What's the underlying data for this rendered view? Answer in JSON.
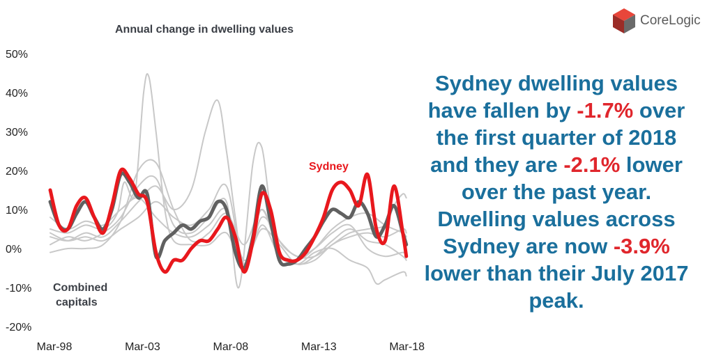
{
  "logo": {
    "name": "CoreLogic"
  },
  "summary": {
    "p1": "Sydney dwelling values have fallen by ",
    "v1": "-1.7%",
    "p2": " over the first quarter of 2018 and they are ",
    "v2": "-2.1%",
    "p3": " lower over the past year. Dwelling values across Sydney are now ",
    "v3": "-3.9%",
    "p4": " lower than their July 2017 peak."
  },
  "colors": {
    "sydney": "#e8181d",
    "combined": "#606060",
    "other": "#c8c8c8",
    "accent_text": "#1a6f9c"
  },
  "chart_data": {
    "type": "line",
    "title": "Annual change in dwelling values",
    "xlabel": "",
    "ylabel": "",
    "x_ticks": [
      "Mar-98",
      "Mar-03",
      "Mar-08",
      "Mar-13",
      "Mar-18"
    ],
    "y_ticks": [
      "50%",
      "40%",
      "30%",
      "20%",
      "10%",
      "0%",
      "-10%",
      "-20%"
    ],
    "ylim": [
      -20,
      50
    ],
    "xlim": [
      1998.0,
      2018.25
    ],
    "grid": false,
    "annotations": [
      {
        "text": "Sydney",
        "series": "Sydney"
      },
      {
        "text": "Combined\ncapitals",
        "series": "Combined capitals"
      }
    ],
    "series": [
      {
        "name": "Sydney",
        "x": [
          1998.0,
          1998.5,
          1999.0,
          1999.5,
          2000.0,
          2000.5,
          2001.0,
          2001.5,
          2002.0,
          2002.5,
          2003.0,
          2003.5,
          2004.0,
          2004.5,
          2005.0,
          2005.5,
          2006.0,
          2006.5,
          2007.0,
          2007.5,
          2008.0,
          2008.5,
          2009.0,
          2009.5,
          2010.0,
          2010.5,
          2011.0,
          2011.5,
          2012.0,
          2012.5,
          2013.0,
          2013.5,
          2014.0,
          2014.5,
          2015.0,
          2015.5,
          2016.0,
          2016.5,
          2017.0,
          2017.5,
          2018.0,
          2018.2
        ],
        "values": [
          15,
          6,
          5,
          11,
          13,
          8,
          4,
          11,
          20,
          18,
          14,
          12,
          -1,
          -6,
          -3,
          -3,
          0,
          2,
          2,
          5,
          8,
          3,
          -6,
          2,
          14,
          10,
          -1,
          -3,
          -3,
          -1,
          3,
          8,
          15,
          17,
          15,
          11,
          19,
          5,
          2,
          16,
          4,
          -2
        ]
      },
      {
        "name": "Combined capitals",
        "x": [
          1998.0,
          1998.5,
          1999.0,
          1999.5,
          2000.0,
          2000.5,
          2001.0,
          2001.5,
          2002.0,
          2002.5,
          2003.0,
          2003.5,
          2004.0,
          2004.5,
          2005.0,
          2005.5,
          2006.0,
          2006.5,
          2007.0,
          2007.5,
          2008.0,
          2008.5,
          2009.0,
          2009.5,
          2010.0,
          2010.5,
          2011.0,
          2011.5,
          2012.0,
          2012.5,
          2013.0,
          2013.5,
          2014.0,
          2014.5,
          2015.0,
          2015.5,
          2016.0,
          2016.5,
          2017.0,
          2017.5,
          2018.0,
          2018.2
        ],
        "values": [
          12,
          6,
          5,
          9,
          12,
          8,
          5,
          10,
          19,
          17,
          13,
          14,
          -2,
          2,
          4,
          6,
          5,
          7,
          8,
          12,
          10,
          -1,
          -5,
          3,
          16,
          7,
          -3,
          -4,
          -3,
          0,
          3,
          7,
          10,
          9,
          8,
          12,
          9,
          3,
          6,
          11,
          4,
          1
        ]
      },
      {
        "name": "",
        "x": [
          1998.0,
          1999.0,
          2000.0,
          2001.0,
          2001.8,
          2002.2,
          2002.8,
          2003.3,
          2003.6,
          2004.0,
          2004.5,
          2005.0,
          2006.0,
          2007.0,
          2008.0,
          2009.0,
          2010.0,
          2011.0,
          2012.0,
          2013.0,
          2014.0,
          2015.0,
          2016.0,
          2017.0,
          2018.0,
          2018.2
        ],
        "values": [
          5,
          4,
          6,
          5,
          9,
          17,
          14,
          40,
          44,
          30,
          10,
          2,
          1,
          1,
          4,
          -4,
          10,
          -1,
          -3,
          0,
          5,
          8,
          9,
          6,
          4,
          3
        ]
      },
      {
        "name": "",
        "x": [
          1998.0,
          1999.0,
          2000.0,
          2001.0,
          2002.0,
          2003.0,
          2004.0,
          2005.0,
          2006.0,
          2006.8,
          2007.5,
          2008.0,
          2008.5,
          2009.0,
          2010.0,
          2011.0,
          2012.0,
          2013.0,
          2014.0,
          2015.0,
          2016.0,
          2017.0,
          2018.0,
          2018.2
        ],
        "values": [
          3,
          2,
          4,
          3,
          7,
          12,
          16,
          10,
          15,
          30,
          38,
          25,
          8,
          -5,
          6,
          -2,
          -4,
          -3,
          1,
          3,
          4,
          3,
          5,
          4
        ]
      },
      {
        "name": "",
        "x": [
          1998.0,
          1999.0,
          2000.0,
          2001.0,
          2002.0,
          2003.0,
          2004.0,
          2005.0,
          2006.0,
          2007.0,
          2008.0,
          2008.7,
          2009.5,
          2010.0,
          2010.5,
          2011.0,
          2012.0,
          2013.0,
          2014.0,
          2015.0,
          2016.0,
          2017.0,
          2017.5,
          2018.0,
          2018.2
        ],
        "values": [
          1,
          3,
          2,
          4,
          8,
          16,
          18,
          6,
          4,
          8,
          12,
          -10,
          22,
          26,
          10,
          2,
          -2,
          -2,
          1,
          4,
          5,
          6,
          11,
          14,
          13
        ]
      },
      {
        "name": "",
        "x": [
          1998.0,
          1999.0,
          2000.0,
          2001.0,
          2002.0,
          2003.0,
          2004.0,
          2005.0,
          2006.0,
          2007.0,
          2008.0,
          2009.0,
          2010.0,
          2011.0,
          2012.0,
          2013.0,
          2014.0,
          2015.0,
          2016.0,
          2016.5,
          2017.0,
          2018.0,
          2018.2
        ],
        "values": [
          -1,
          0,
          0,
          1,
          7,
          20,
          22,
          10,
          2,
          4,
          9,
          1,
          10,
          -1,
          -4,
          -1,
          0,
          -3,
          -5,
          -9,
          -8,
          -6,
          -7
        ]
      },
      {
        "name": "",
        "x": [
          1998.0,
          1999.0,
          2000.0,
          2001.0,
          2002.0,
          2003.0,
          2004.0,
          2005.0,
          2006.0,
          2007.0,
          2008.0,
          2009.0,
          2010.0,
          2011.0,
          2012.0,
          2013.0,
          2014.0,
          2015.0,
          2016.0,
          2017.0,
          2018.0,
          2018.2
        ],
        "values": [
          4,
          2,
          3,
          2,
          5,
          8,
          12,
          8,
          6,
          10,
          16,
          -4,
          8,
          2,
          -2,
          0,
          4,
          6,
          0,
          -2,
          -1,
          -2
        ]
      },
      {
        "name": "",
        "x": [
          1998.0,
          1999.0,
          2000.0,
          2001.0,
          2002.0,
          2003.0,
          2004.0,
          2005.0,
          2006.0,
          2007.0,
          2008.0,
          2009.0,
          2010.0,
          2011.0,
          2012.0,
          2013.0,
          2014.0,
          2015.0,
          2016.0,
          2017.0,
          2018.0,
          2018.2
        ],
        "values": [
          8,
          5,
          7,
          6,
          10,
          13,
          8,
          4,
          3,
          6,
          10,
          -3,
          5,
          1,
          -4,
          -2,
          2,
          5,
          2,
          1,
          -2,
          -3
        ]
      }
    ]
  }
}
